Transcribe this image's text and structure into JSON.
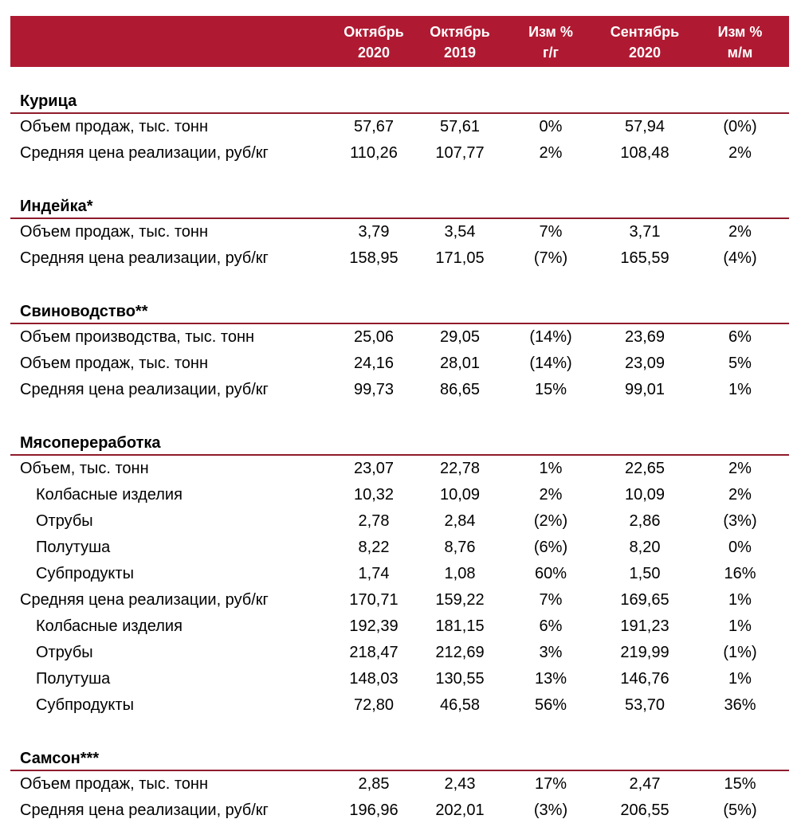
{
  "colors": {
    "header_bg": "#AF1A32",
    "header_text": "#FFFFFF",
    "divider": "#8F1B2B",
    "text": "#000000"
  },
  "table": {
    "columns": [
      {
        "line1": "Октябрь",
        "line2": "2020"
      },
      {
        "line1": "Октябрь",
        "line2": "2019"
      },
      {
        "line1": "Изм %",
        "line2": "г/г"
      },
      {
        "line1": "Сентябрь",
        "line2": "2020"
      },
      {
        "line1": "Изм %",
        "line2": "м/м"
      }
    ],
    "sections": [
      {
        "title": "Курица",
        "rows": [
          {
            "label": "Объем продаж, тыс. тонн",
            "indent": false,
            "values": [
              "57,67",
              "57,61",
              "0%",
              "57,94",
              "(0%)"
            ]
          },
          {
            "label": "Средняя цена реализации, руб/кг",
            "indent": false,
            "values": [
              "110,26",
              "107,77",
              "2%",
              "108,48",
              "2%"
            ]
          }
        ]
      },
      {
        "title": "Индейка*",
        "rows": [
          {
            "label": "Объем продаж, тыс. тонн",
            "indent": false,
            "values": [
              "3,79",
              "3,54",
              "7%",
              "3,71",
              "2%"
            ]
          },
          {
            "label": "Средняя цена реализации, руб/кг",
            "indent": false,
            "values": [
              "158,95",
              "171,05",
              "(7%)",
              "165,59",
              "(4%)"
            ]
          }
        ]
      },
      {
        "title": "Свиноводство**",
        "rows": [
          {
            "label": "Объем производства, тыс. тонн",
            "indent": false,
            "values": [
              "25,06",
              "29,05",
              "(14%)",
              "23,69",
              "6%"
            ]
          },
          {
            "label": "Объем продаж, тыс. тонн",
            "indent": false,
            "values": [
              "24,16",
              "28,01",
              "(14%)",
              "23,09",
              "5%"
            ]
          },
          {
            "label": "Средняя цена реализации, руб/кг",
            "indent": false,
            "values": [
              "99,73",
              "86,65",
              "15%",
              "99,01",
              "1%"
            ]
          }
        ]
      },
      {
        "title": "Мясопереработка",
        "rows": [
          {
            "label": "Объем, тыс. тонн",
            "indent": false,
            "values": [
              "23,07",
              "22,78",
              "1%",
              "22,65",
              "2%"
            ]
          },
          {
            "label": "Колбасные изделия",
            "indent": true,
            "values": [
              "10,32",
              "10,09",
              "2%",
              "10,09",
              "2%"
            ]
          },
          {
            "label": "Отрубы",
            "indent": true,
            "values": [
              "2,78",
              "2,84",
              "(2%)",
              "2,86",
              "(3%)"
            ]
          },
          {
            "label": "Полутуша",
            "indent": true,
            "values": [
              "8,22",
              "8,76",
              "(6%)",
              "8,20",
              "0%"
            ]
          },
          {
            "label": "Субпродукты",
            "indent": true,
            "values": [
              "1,74",
              "1,08",
              "60%",
              "1,50",
              "16%"
            ]
          },
          {
            "label": "Средняя цена реализации, руб/кг",
            "indent": false,
            "values": [
              "170,71",
              "159,22",
              "7%",
              "169,65",
              "1%"
            ]
          },
          {
            "label": "Колбасные изделия",
            "indent": true,
            "values": [
              "192,39",
              "181,15",
              "6%",
              "191,23",
              "1%"
            ]
          },
          {
            "label": "Отрубы",
            "indent": true,
            "values": [
              "218,47",
              "212,69",
              "3%",
              "219,99",
              "(1%)"
            ]
          },
          {
            "label": "Полутуша",
            "indent": true,
            "values": [
              "148,03",
              "130,55",
              "13%",
              "146,76",
              "1%"
            ]
          },
          {
            "label": "Субпродукты",
            "indent": true,
            "values": [
              "72,80",
              "46,58",
              "56%",
              "53,70",
              "36%"
            ]
          }
        ]
      },
      {
        "title": "Самсон***",
        "rows": [
          {
            "label": "Объем продаж, тыс. тонн",
            "indent": false,
            "values": [
              "2,85",
              "2,43",
              "17%",
              "2,47",
              "15%"
            ]
          },
          {
            "label": "Средняя цена реализации, руб/кг",
            "indent": false,
            "values": [
              "196,96",
              "202,01",
              "(3%)",
              "206,55",
              "(5%)"
            ]
          }
        ]
      }
    ]
  }
}
